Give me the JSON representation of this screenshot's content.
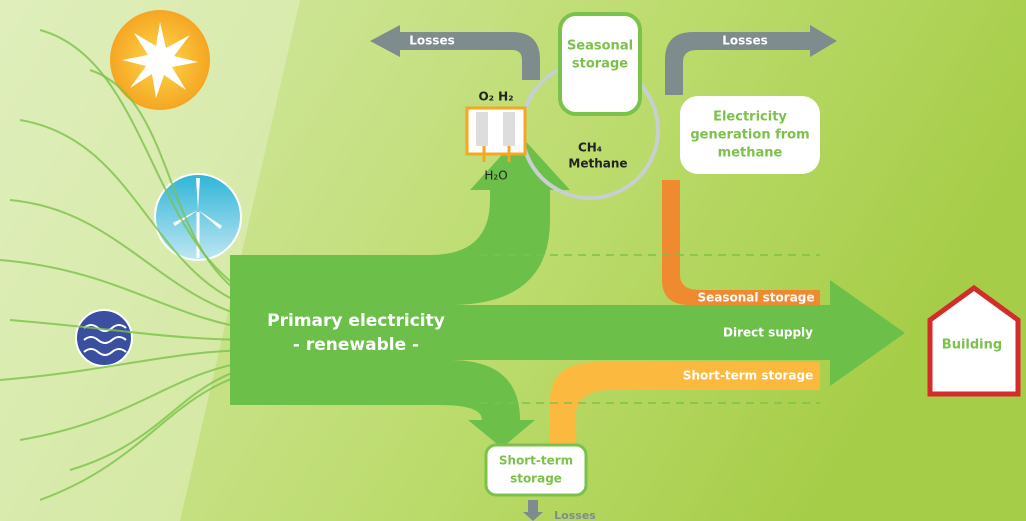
{
  "losses": [
    "Losses",
    "Losses",
    "Losses"
  ],
  "seasonal_storage_box": [
    "Seasonal",
    "storage"
  ],
  "electrolyser": {
    "gases": "O₂ H₂",
    "water": "H₂O"
  },
  "methane": {
    "formula": "CH₄",
    "name": "Methane"
  },
  "generation_box": [
    "Electricity",
    "generation from",
    "methane"
  ],
  "primary": [
    "Primary electricity",
    "- renewable -"
  ],
  "flows": {
    "seasonal": "Seasonal storage",
    "direct": "Direct supply",
    "short_term": "Short-term storage"
  },
  "short_term_box": [
    "Short-term",
    "storage"
  ],
  "building": "Building"
}
